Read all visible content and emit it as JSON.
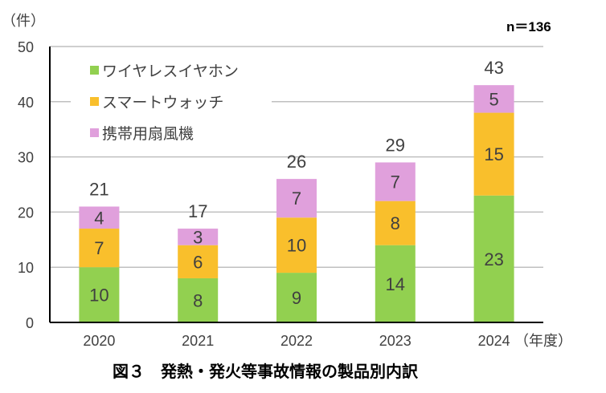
{
  "chart_data": {
    "type": "bar",
    "stacked": true,
    "title": "図３　発熱・発火等事故情報の製品別内訳",
    "ylabel": "（件）",
    "xlabel": "（年度）",
    "annotation": "n＝136",
    "ylim": [
      0,
      50
    ],
    "yticks": [
      0,
      10,
      20,
      30,
      40,
      50
    ],
    "grid": true,
    "legend_position": "top-left",
    "categories": [
      "2020",
      "2021",
      "2022",
      "2023",
      "2024"
    ],
    "series": [
      {
        "name": "ワイヤレスイヤホン",
        "color": "#92d050",
        "values": [
          10,
          8,
          9,
          14,
          23
        ]
      },
      {
        "name": "スマートウォッチ",
        "color": "#f9bf2c",
        "values": [
          7,
          6,
          10,
          8,
          15
        ]
      },
      {
        "name": "携帯用扇風機",
        "color": "#e0a0dc",
        "values": [
          4,
          3,
          7,
          7,
          5
        ]
      }
    ],
    "totals": [
      21,
      17,
      26,
      29,
      43
    ]
  }
}
